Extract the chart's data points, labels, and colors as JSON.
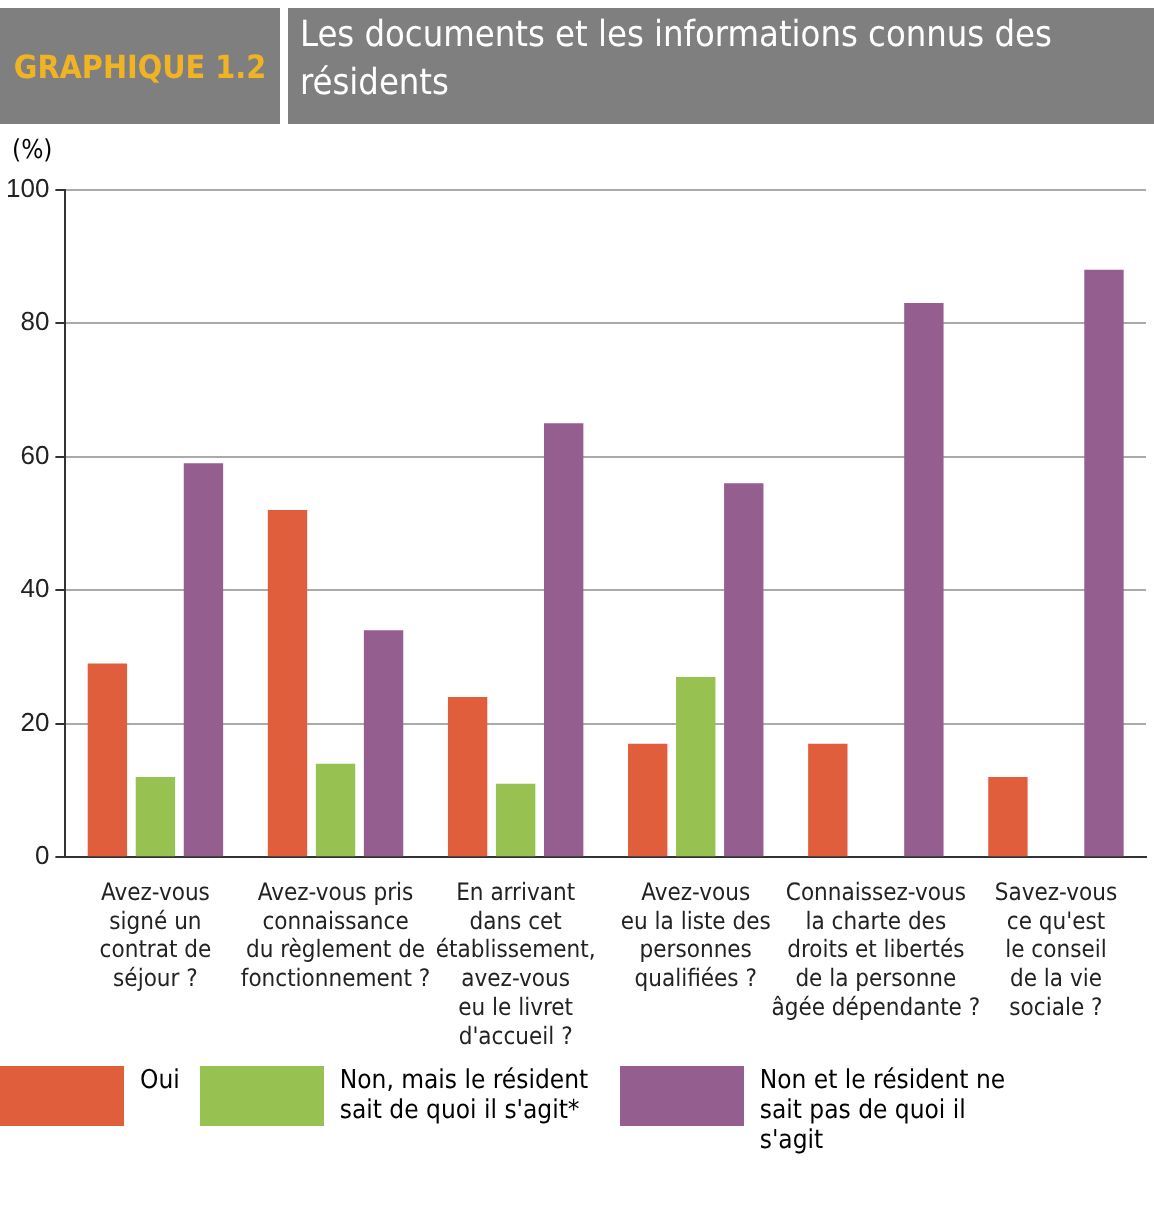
{
  "chart_data": {
    "type": "bar",
    "subtitle": "GRAPHIQUE 1.2",
    "title": "Les documents et les informations connus des résidents",
    "ylabel": "(%)",
    "categories": [
      "Avez-vous\nsigné un\ncontrat de\nséjour ?",
      "Avez-vous pris\nconnaissance\ndu règlement de\nfonctionnement ?",
      "En arrivant\ndans cet\nétablissement,\navez-vous\neu le livret\nd'accueil ?",
      "Avez-vous\neu la liste des\npersonnes\nqualifiées ?",
      "Connaissez-vous\nla charte des\ndroits et libertés\nde la personne\nâgée dépendante ?",
      "Savez-vous\nce qu'est\nle conseil\nde la vie\nsociale ?"
    ],
    "series": [
      {
        "name": "Oui",
        "color": "#e15e3d",
        "values": [
          29,
          52,
          24,
          17,
          17,
          12
        ]
      },
      {
        "name": "Non, mais le résident sait de quoi il s'agit*",
        "color": "#97c150",
        "values": [
          12,
          14,
          11,
          27,
          null,
          null
        ]
      },
      {
        "name": "Non et le résident ne sait pas de quoi il s'agit",
        "color": "#945e8f",
        "values": [
          59,
          34,
          65,
          56,
          83,
          88
        ]
      }
    ],
    "ylim": [
      0,
      100
    ],
    "yticks": [
      0,
      20,
      40,
      60,
      80,
      100
    ],
    "grid": "y",
    "legend": "bottom"
  }
}
